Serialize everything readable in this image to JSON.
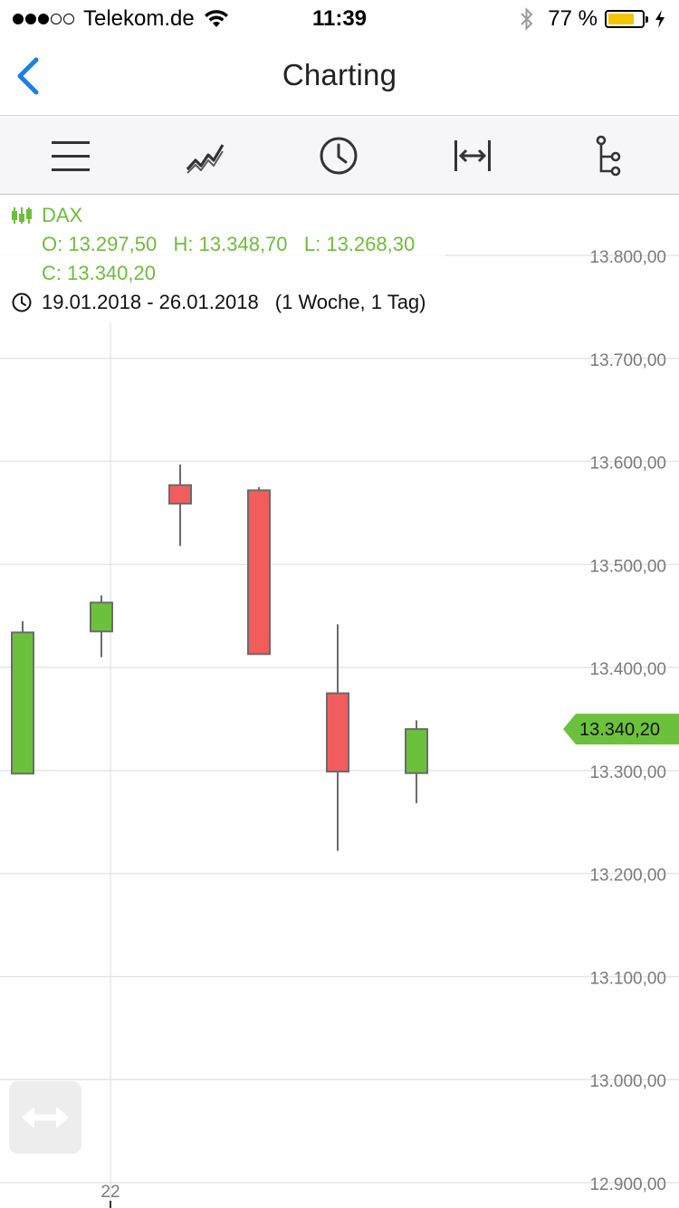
{
  "status_bar": {
    "signal_dots": 5,
    "signal_filled": 3,
    "carrier": "Telekom.de",
    "time": "11:39",
    "battery_label": "77 %",
    "battery_level": 0.77,
    "battery_color": "#f5c400",
    "icons": [
      "wifi-icon",
      "bluetooth-icon",
      "battery-icon",
      "charging-bolt-icon"
    ]
  },
  "nav": {
    "title": "Charting",
    "back_icon": "chevron-left-icon",
    "accent": "#1a7fe8"
  },
  "toolbar": {
    "items": [
      {
        "name": "menu",
        "icon": "hamburger-menu-icon"
      },
      {
        "name": "chart-type",
        "icon": "line-chart-icon"
      },
      {
        "name": "time-range",
        "icon": "clock-icon"
      },
      {
        "name": "zoom-range",
        "icon": "horizontal-expand-icon"
      },
      {
        "name": "indicators",
        "icon": "tree-branch-icon"
      }
    ]
  },
  "info": {
    "symbol_icon": "candlestick-icon",
    "symbol": "DAX",
    "ohlc_line": "O: 13.297,50   H: 13.348,70   L: 13.268,30",
    "close_line": "C: 13.340,20",
    "period_icon": "clock-icon",
    "period": "19.01.2018 - 26.01.2018",
    "period_detail": "(1 Woche, 1 Tag)"
  },
  "colors": {
    "up": "#6cc13c",
    "down": "#f25c5c",
    "grid": "#e5e5e5",
    "axis_text": "#7a7a7a",
    "info_green": "#6dbd3a"
  },
  "chart_data": {
    "type": "candlestick",
    "title": "DAX",
    "ylim": [
      12900,
      13840
    ],
    "y_ticks": [
      {
        "value": 13800,
        "label": "13.800,00"
      },
      {
        "value": 13700,
        "label": "13.700,00"
      },
      {
        "value": 13600,
        "label": "13.600,00"
      },
      {
        "value": 13500,
        "label": "13.500,00"
      },
      {
        "value": 13400,
        "label": "13.400,00"
      },
      {
        "value": 13300,
        "label": "13.300,00"
      },
      {
        "value": 13200,
        "label": "13.200,00"
      },
      {
        "value": 13100,
        "label": "13.100,00"
      },
      {
        "value": 13000,
        "label": "13.000,00"
      },
      {
        "value": 12900,
        "label": "12.900,00"
      }
    ],
    "x_ticks": [
      {
        "index": 1,
        "label": "22"
      }
    ],
    "grid": true,
    "axis_position": "right",
    "candles": [
      {
        "day": "19",
        "open": 13297,
        "high": 13445,
        "low": 13297,
        "close": 13434
      },
      {
        "day": "22",
        "open": 13435,
        "high": 13470,
        "low": 13410,
        "close": 13463
      },
      {
        "day": "23",
        "open": 13577,
        "high": 13597,
        "low": 13518,
        "close": 13559
      },
      {
        "day": "24",
        "open": 13572,
        "high": 13575,
        "low": 13413,
        "close": 13413
      },
      {
        "day": "25",
        "open": 13375,
        "high": 13442,
        "low": 13222,
        "close": 13299
      },
      {
        "day": "26",
        "open": 13297.5,
        "high": 13348.7,
        "low": 13268.3,
        "close": 13340.2
      }
    ],
    "last_price": {
      "value": 13340.2,
      "label": "13.340,20"
    }
  }
}
